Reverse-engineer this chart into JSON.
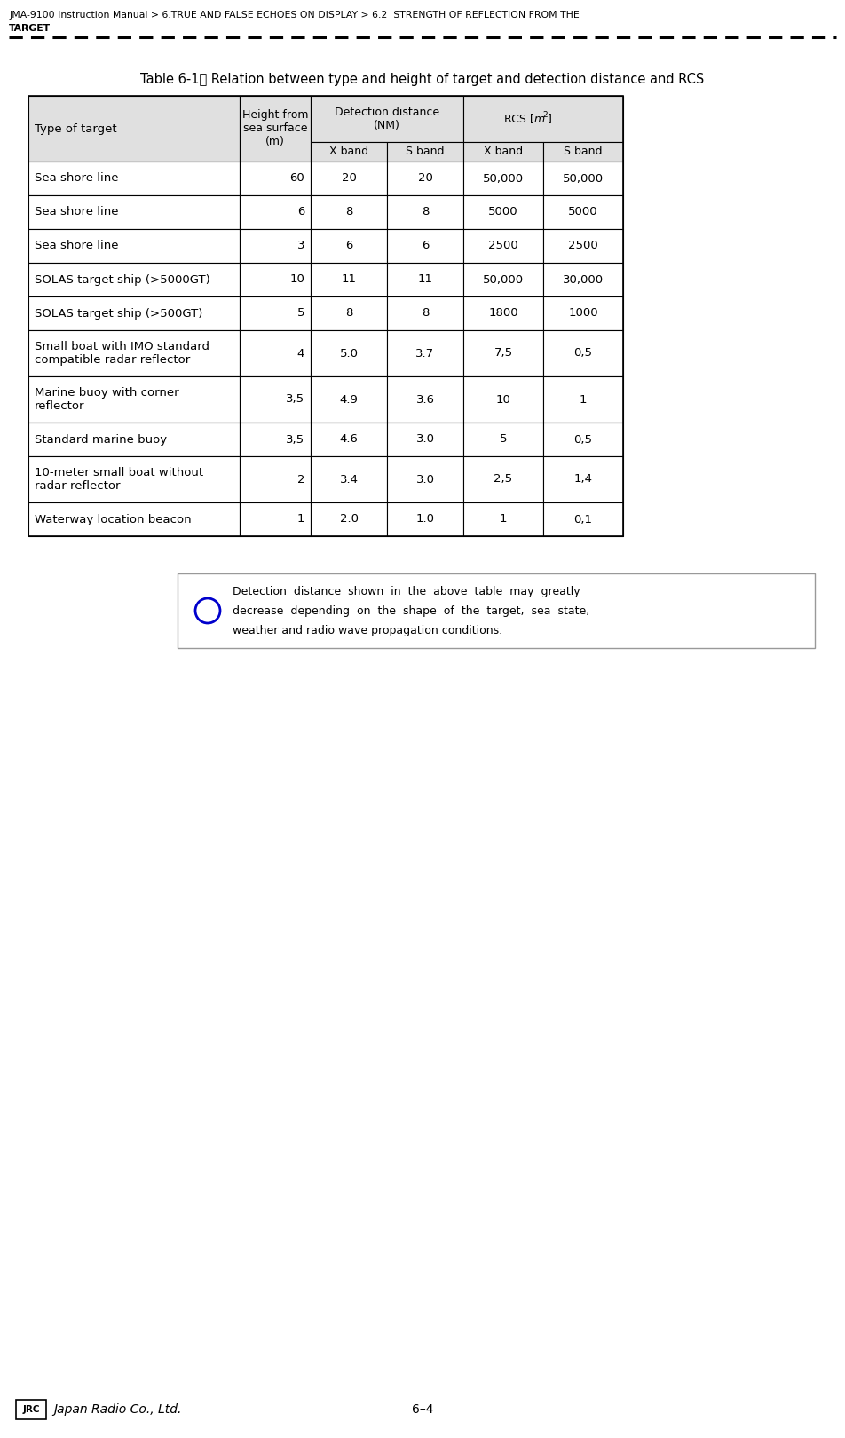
{
  "breadcrumb_line1": "JMA-9100 Instruction Manual > 6.TRUE AND FALSE ECHOES ON DISPLAY > 6.2  STRENGTH OF REFLECTION FROM THE",
  "breadcrumb_line2": "TARGET",
  "table_title": "Table 6-1： Relation between type and height of target and detection distance and RCS",
  "sub_headers": [
    "X band",
    "S band",
    "X band",
    "S band"
  ],
  "rows": [
    [
      "Sea shore line",
      "60",
      "20",
      "20",
      "50,000",
      "50,000"
    ],
    [
      "Sea shore line",
      "6",
      "8",
      "8",
      "5000",
      "5000"
    ],
    [
      "Sea shore line",
      "3",
      "6",
      "6",
      "2500",
      "2500"
    ],
    [
      "SOLAS target ship (>5000GT)",
      "10",
      "11",
      "11",
      "50,000",
      "30,000"
    ],
    [
      "SOLAS target ship (>500GT)",
      "5",
      "8",
      "8",
      "1800",
      "1000"
    ],
    [
      "Small boat with IMO standard\ncompatible radar reflector",
      "4",
      "5.0",
      "3.7",
      "7,5",
      "0,5"
    ],
    [
      "Marine buoy with corner\nreflector",
      "3,5",
      "4.9",
      "3.6",
      "10",
      "1"
    ],
    [
      "Standard marine buoy",
      "3,5",
      "4.6",
      "3.0",
      "5",
      "0,5"
    ],
    [
      "10-meter small boat without\nradar reflector",
      "2",
      "3.4",
      "3.0",
      "2,5",
      "1,4"
    ],
    [
      "Waterway location beacon",
      "1",
      "2.0",
      "1.0",
      "1",
      "0,1"
    ]
  ],
  "note_lines": [
    "Detection  distance  shown  in  the  above  table  may  greatly",
    "decrease  depending  on  the  shape  of  the  target,  sea  state,",
    "weather and radio wave propagation conditions."
  ],
  "footer_page": "6–4",
  "bg_color": "#ffffff",
  "header_bg": "#e0e0e0",
  "info_circle_color": "#0000cc",
  "note_border_color": "#999999"
}
